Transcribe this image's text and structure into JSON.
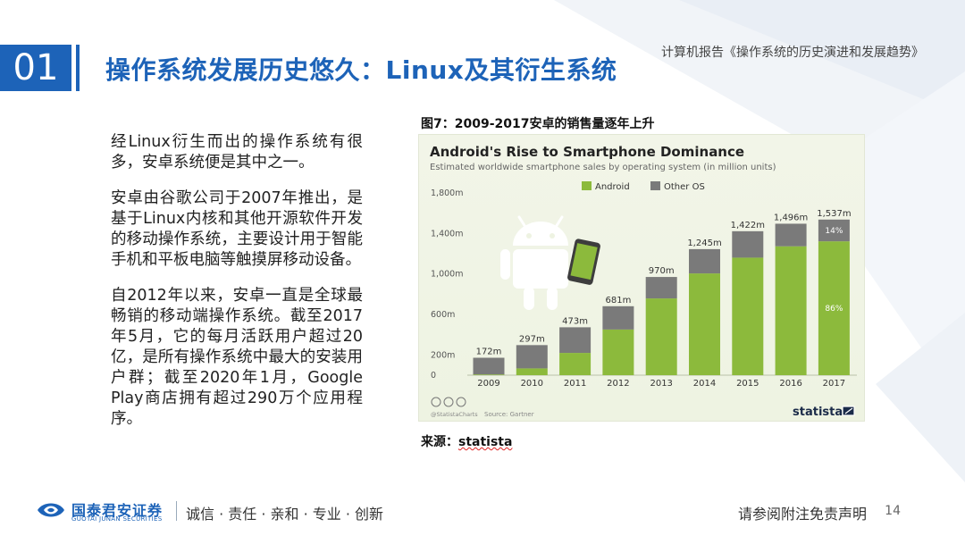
{
  "header": {
    "section_number": "01",
    "title": "操作系统发展历史悠久：Linux及其衍生系统",
    "report_tag": "计算机报告《操作系统的历史演进和发展趋势》"
  },
  "body": {
    "paragraphs": [
      "经Linux衍生而出的操作系统有很多，安卓系统便是其中之一。",
      "安卓由谷歌公司于2007年推出，是基于Linux内核和其他开源软件开发的移动操作系统，主要设计用于智能手机和平板电脑等触摸屏移动设备。",
      "自2012年以来，安卓一直是全球最畅销的移动端操作系统。截至2017年5月，它的每月活跃用户超过20亿，是所有操作系统中最大的安装用户群；截至2020年1月，Google Play商店拥有超过290万个应用程序。"
    ]
  },
  "figure": {
    "caption": "图7：2009-2017安卓的销售量逐年上升",
    "source_label": "来源：",
    "source_name": "statista"
  },
  "chart_data": {
    "type": "bar",
    "stacked": true,
    "title": "Android's Rise to Smartphone Dominance",
    "subtitle": "Estimated worldwide smartphone sales by operating system (in million units)",
    "categories": [
      "2009",
      "2010",
      "2011",
      "2012",
      "2013",
      "2014",
      "2015",
      "2016",
      "2017"
    ],
    "series": [
      {
        "name": "Android",
        "color": "#8cba3c",
        "values": [
          7,
          67,
          220,
          451,
          758,
          1005,
          1161,
          1273,
          1322
        ]
      },
      {
        "name": "Other OS",
        "color": "#7a7a7a",
        "values": [
          165,
          230,
          253,
          230,
          212,
          240,
          261,
          223,
          215
        ]
      }
    ],
    "totals": [
      "172m",
      "297m",
      "473m",
      "681m",
      "970m",
      "1,245m",
      "1,422m",
      "1,496m",
      "1,537m"
    ],
    "ylim": [
      0,
      1800
    ],
    "yticks": [
      {
        "value": 0,
        "label": "0"
      },
      {
        "value": 200,
        "label": "200m"
      },
      {
        "value": 600,
        "label": "600m"
      },
      {
        "value": 1000,
        "label": "1,000m"
      },
      {
        "value": 1400,
        "label": "1,400m"
      },
      {
        "value": 1800,
        "label": "1,800m"
      }
    ],
    "share_labels": {
      "other": "14%",
      "android": "86%"
    },
    "legend_position": "top-center",
    "grid": false,
    "source_note": "Source: Gartner",
    "brand_handle": "@StatistaCharts",
    "brand": "statista"
  },
  "footer": {
    "logo_cn": "国泰君安证券",
    "logo_en": "GUOTAI JUNAN SECURITIES",
    "slogan": "诚信 · 责任 · 亲和 · 专业 · 创新",
    "disclaimer": "请参阅附注免责声明",
    "page_number": "14"
  },
  "colors": {
    "brand_blue": "#1d63b8",
    "android_green": "#8cba3c",
    "other_gray": "#7a7a7a"
  }
}
